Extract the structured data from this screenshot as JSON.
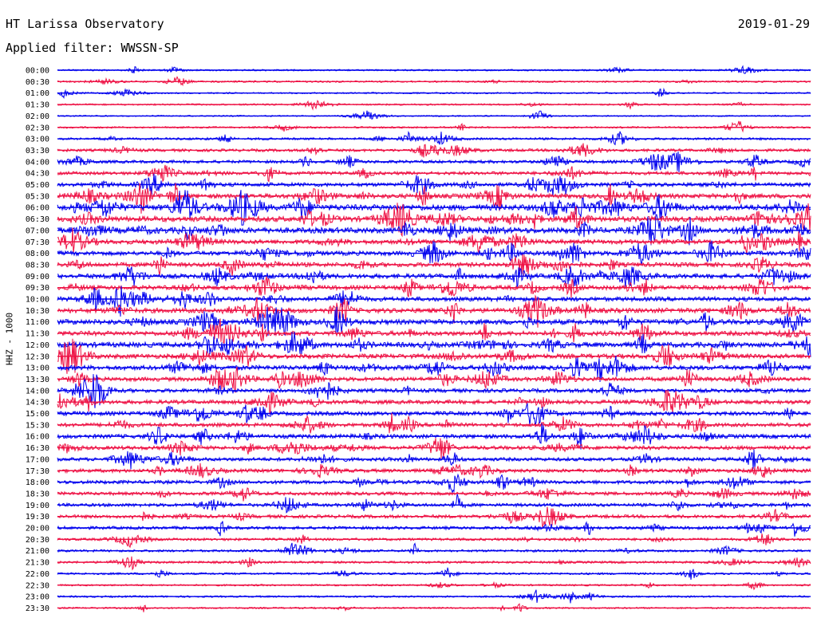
{
  "header": {
    "title": "HT Larissa Observatory",
    "date": "2019-01-29",
    "filter": "Applied filter: WWSSN-SP"
  },
  "chart_data": {
    "type": "line",
    "title": "HT Larissa Observatory",
    "subtitle": "Applied filter: WWSSN-SP",
    "ylabel": "HHZ - 1000",
    "xlabel": "",
    "grid": false,
    "colors": {
      "even_rows": "#0000ee",
      "odd_rows": "#ee1144"
    },
    "rows": [
      {
        "label": "00:00",
        "activity": 0.12
      },
      {
        "label": "00:30",
        "activity": 0.15
      },
      {
        "label": "01:00",
        "activity": 0.1
      },
      {
        "label": "01:30",
        "activity": 0.12
      },
      {
        "label": "02:00",
        "activity": 0.06
      },
      {
        "label": "02:30",
        "activity": 0.15
      },
      {
        "label": "03:00",
        "activity": 0.25
      },
      {
        "label": "03:30",
        "activity": 0.35
      },
      {
        "label": "04:00",
        "activity": 0.4
      },
      {
        "label": "04:30",
        "activity": 0.45
      },
      {
        "label": "05:00",
        "activity": 0.55
      },
      {
        "label": "05:30",
        "activity": 0.7
      },
      {
        "label": "06:00",
        "activity": 0.95
      },
      {
        "label": "06:30",
        "activity": 0.85
      },
      {
        "label": "07:00",
        "activity": 0.9
      },
      {
        "label": "07:30",
        "activity": 0.7
      },
      {
        "label": "08:00",
        "activity": 0.65
      },
      {
        "label": "08:30",
        "activity": 0.65
      },
      {
        "label": "09:00",
        "activity": 0.7
      },
      {
        "label": "09:30",
        "activity": 0.65
      },
      {
        "label": "10:00",
        "activity": 0.65
      },
      {
        "label": "10:30",
        "activity": 0.75
      },
      {
        "label": "11:00",
        "activity": 0.8
      },
      {
        "label": "11:30",
        "activity": 0.7
      },
      {
        "label": "12:00",
        "activity": 0.8
      },
      {
        "label": "12:30",
        "activity": 0.7
      },
      {
        "label": "13:00",
        "activity": 0.7
      },
      {
        "label": "13:30",
        "activity": 0.6
      },
      {
        "label": "14:00",
        "activity": 0.55
      },
      {
        "label": "14:30",
        "activity": 0.6
      },
      {
        "label": "15:00",
        "activity": 0.6
      },
      {
        "label": "15:30",
        "activity": 0.55
      },
      {
        "label": "16:00",
        "activity": 0.6
      },
      {
        "label": "16:30",
        "activity": 0.55
      },
      {
        "label": "17:00",
        "activity": 0.5
      },
      {
        "label": "17:30",
        "activity": 0.5
      },
      {
        "label": "18:00",
        "activity": 0.5
      },
      {
        "label": "18:30",
        "activity": 0.45
      },
      {
        "label": "19:00",
        "activity": 0.45
      },
      {
        "label": "19:30",
        "activity": 0.45
      },
      {
        "label": "20:00",
        "activity": 0.4
      },
      {
        "label": "20:30",
        "activity": 0.3
      },
      {
        "label": "21:00",
        "activity": 0.25
      },
      {
        "label": "21:30",
        "activity": 0.25
      },
      {
        "label": "22:00",
        "activity": 0.2
      },
      {
        "label": "22:30",
        "activity": 0.15
      },
      {
        "label": "23:00",
        "activity": 0.15
      },
      {
        "label": "23:30",
        "activity": 0.12
      }
    ]
  }
}
